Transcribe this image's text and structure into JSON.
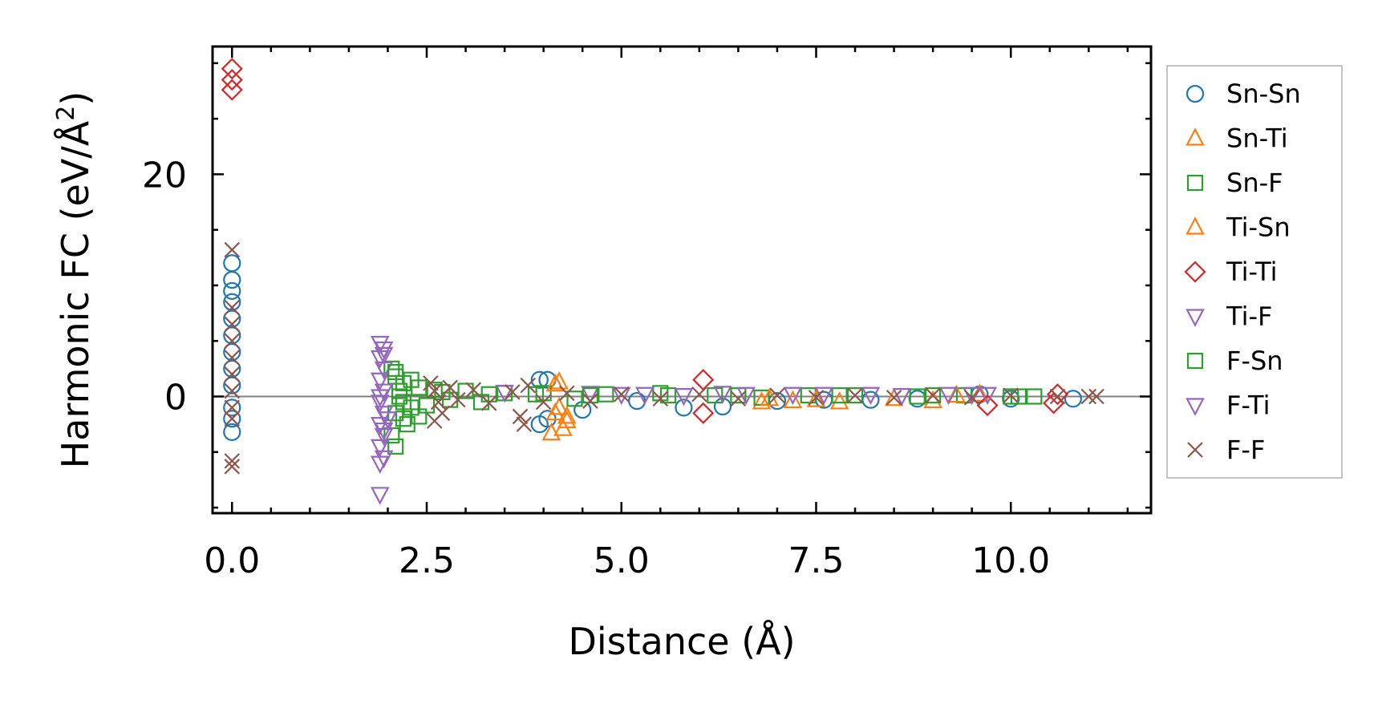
{
  "chart_data": {
    "type": "scatter",
    "xlabel": "Distance (Å)",
    "ylabel": "Harmonic FC (eV/Å²)",
    "ylabel_main": "Harmonic FC (eV/Å",
    "ylabel_sup": "2",
    "ylabel_close": ")",
    "xlim": [
      -0.25,
      11.8
    ],
    "ylim": [
      -10.5,
      31.5
    ],
    "xticks": [
      0,
      2.5,
      5,
      7.5,
      10
    ],
    "xtick_labels": [
      "0.0",
      "2.5",
      "5.0",
      "7.5",
      "10.0"
    ],
    "yticks": [
      0,
      20
    ],
    "ytick_labels": [
      "0",
      "20"
    ],
    "reference_line_y": 0,
    "grid": false,
    "legend_position": "outside-right",
    "series": [
      {
        "name": "Sn-Sn",
        "marker": "circle",
        "color": "#1f77b4",
        "points": [
          [
            0,
            12.0
          ],
          [
            0,
            10.5
          ],
          [
            0,
            9.5
          ],
          [
            0,
            8.5
          ],
          [
            0,
            7.0
          ],
          [
            0,
            5.5
          ],
          [
            0,
            4.0
          ],
          [
            0,
            2.5
          ],
          [
            0,
            1.0
          ],
          [
            0,
            -1.0
          ],
          [
            0,
            -2.0
          ],
          [
            0,
            -3.2
          ],
          [
            3.95,
            1.5
          ],
          [
            4.05,
            1.5
          ],
          [
            3.95,
            -2.5
          ],
          [
            4.05,
            -2.0
          ],
          [
            4.5,
            -1.2
          ],
          [
            5.2,
            -0.4
          ],
          [
            5.8,
            -1.0
          ],
          [
            6.3,
            -0.9
          ],
          [
            7.0,
            -0.4
          ],
          [
            7.6,
            -0.3
          ],
          [
            8.2,
            -0.3
          ],
          [
            8.8,
            -0.2
          ],
          [
            9.6,
            0.2
          ],
          [
            10.0,
            -0.2
          ],
          [
            10.8,
            -0.2
          ]
        ]
      },
      {
        "name": "Sn-Ti",
        "marker": "triangle-up",
        "color": "#ff7f0e",
        "points": [
          [
            4.1,
            -3.3
          ],
          [
            4.25,
            -2.9
          ],
          [
            4.2,
            1.3
          ],
          [
            4.3,
            -1.8
          ],
          [
            4.15,
            -1.5
          ],
          [
            6.8,
            -0.5
          ],
          [
            7.2,
            -0.4
          ],
          [
            7.8,
            -0.5
          ],
          [
            9.0,
            -0.4
          ],
          [
            9.6,
            0.2
          ]
        ]
      },
      {
        "name": "Sn-F",
        "marker": "square",
        "color": "#2ca02c",
        "points": [
          [
            2.05,
            2.5
          ],
          [
            2.1,
            1.8
          ],
          [
            2.2,
            1.2
          ],
          [
            2.15,
            0.5
          ],
          [
            2.2,
            -0.5
          ],
          [
            2.1,
            -1.5
          ],
          [
            2.25,
            -2.5
          ],
          [
            2.05,
            -3.5
          ],
          [
            2.1,
            -4.5
          ],
          [
            2.3,
            -1.0
          ],
          [
            2.4,
            0.8
          ],
          [
            2.5,
            -0.8
          ],
          [
            2.6,
            0.6
          ],
          [
            2.8,
            -0.3
          ],
          [
            3.0,
            0.5
          ],
          [
            3.2,
            -0.5
          ],
          [
            3.5,
            0.3
          ],
          [
            4.0,
            0.3
          ],
          [
            4.4,
            -0.2
          ],
          [
            4.8,
            0.2
          ],
          [
            5.5,
            0.3
          ],
          [
            6.2,
            0.1
          ],
          [
            6.8,
            -0.1
          ],
          [
            7.4,
            0.1
          ],
          [
            8.0,
            0.1
          ],
          [
            8.8,
            0.0
          ],
          [
            9.4,
            0.1
          ],
          [
            10.0,
            0.0
          ],
          [
            10.3,
            0.0
          ]
        ]
      },
      {
        "name": "Ti-Sn",
        "marker": "triangle-up",
        "color": "#ff7f0e",
        "points": [
          [
            4.15,
            1.1
          ],
          [
            4.3,
            -2.2
          ],
          [
            4.2,
            -1.0
          ],
          [
            6.9,
            -0.2
          ],
          [
            7.5,
            -0.3
          ],
          [
            8.5,
            -0.2
          ],
          [
            9.3,
            0.1
          ]
        ]
      },
      {
        "name": "Ti-Ti",
        "marker": "diamond",
        "color": "#d62728",
        "points": [
          [
            0,
            29.5
          ],
          [
            0,
            28.5
          ],
          [
            0,
            27.6
          ],
          [
            6.05,
            1.5
          ],
          [
            6.05,
            -1.5
          ],
          [
            9.7,
            -0.8
          ],
          [
            10.55,
            -0.6
          ],
          [
            10.6,
            0.2
          ]
        ]
      },
      {
        "name": "Ti-F",
        "marker": "triangle-down",
        "color": "#9467bd",
        "points": [
          [
            1.9,
            4.8
          ],
          [
            1.95,
            4.3
          ],
          [
            1.9,
            3.5
          ],
          [
            1.95,
            2.5
          ],
          [
            1.9,
            1.5
          ],
          [
            1.95,
            0.5
          ],
          [
            1.9,
            -0.5
          ],
          [
            1.95,
            -1.5
          ],
          [
            1.9,
            -2.5
          ],
          [
            1.95,
            -3.5
          ],
          [
            1.9,
            -4.5
          ],
          [
            1.95,
            -5.5
          ],
          [
            1.9,
            -8.8
          ],
          [
            3.5,
            0.4
          ],
          [
            4.6,
            0.3
          ],
          [
            5.3,
            0.2
          ],
          [
            6.3,
            0.3
          ],
          [
            7.2,
            0.2
          ],
          [
            8.2,
            0.2
          ],
          [
            9.2,
            0.2
          ],
          [
            9.7,
            0.2
          ]
        ]
      },
      {
        "name": "F-Sn",
        "marker": "square",
        "color": "#2ca02c",
        "points": [
          [
            2.1,
            2.2
          ],
          [
            2.15,
            0.0
          ],
          [
            2.2,
            -2.0
          ],
          [
            2.3,
            1.5
          ],
          [
            2.4,
            -1.8
          ],
          [
            2.7,
            0.4
          ],
          [
            3.3,
            0.2
          ],
          [
            3.9,
            0.2
          ],
          [
            4.6,
            0.1
          ],
          [
            5.6,
            0.1
          ],
          [
            6.5,
            0.1
          ],
          [
            7.8,
            0.1
          ],
          [
            9.0,
            0.1
          ],
          [
            10.1,
            0.0
          ]
        ]
      },
      {
        "name": "F-Ti",
        "marker": "triangle-down",
        "color": "#9467bd",
        "points": [
          [
            1.95,
            3.8
          ],
          [
            1.9,
            0.0
          ],
          [
            1.95,
            -3.0
          ],
          [
            1.9,
            -6.0
          ],
          [
            2.0,
            -2.0
          ],
          [
            5.0,
            0.2
          ],
          [
            5.8,
            0.1
          ],
          [
            6.6,
            0.2
          ],
          [
            7.6,
            0.2
          ],
          [
            8.6,
            0.1
          ],
          [
            9.5,
            0.2
          ]
        ]
      },
      {
        "name": "F-F",
        "marker": "x",
        "color": "#8c564b",
        "points": [
          [
            0,
            13.2
          ],
          [
            0,
            8.0
          ],
          [
            0,
            6.5
          ],
          [
            0,
            5.0
          ],
          [
            0,
            3.5
          ],
          [
            0,
            2.0
          ],
          [
            0,
            0.5
          ],
          [
            0,
            -1.0
          ],
          [
            0,
            -2.0
          ],
          [
            0,
            -5.8
          ],
          [
            0,
            -6.3
          ],
          [
            2.55,
            1.2
          ],
          [
            2.6,
            0.5
          ],
          [
            2.65,
            -0.5
          ],
          [
            2.7,
            -1.5
          ],
          [
            2.6,
            -2.2
          ],
          [
            2.8,
            0.8
          ],
          [
            2.9,
            -0.3
          ],
          [
            3.1,
            0.6
          ],
          [
            3.3,
            -0.6
          ],
          [
            3.6,
            0.4
          ],
          [
            3.75,
            -2.5
          ],
          [
            3.7,
            -1.8
          ],
          [
            3.8,
            1.0
          ],
          [
            4.0,
            -0.5
          ],
          [
            4.3,
            0.3
          ],
          [
            4.6,
            -0.4
          ],
          [
            5.0,
            0.2
          ],
          [
            5.5,
            -0.2
          ],
          [
            6.0,
            0.2
          ],
          [
            6.5,
            -0.2
          ],
          [
            7.0,
            0.1
          ],
          [
            7.5,
            -0.1
          ],
          [
            8.0,
            0.1
          ],
          [
            8.5,
            -0.1
          ],
          [
            9.0,
            0.1
          ],
          [
            9.5,
            -0.1
          ],
          [
            10.0,
            0.1
          ],
          [
            10.6,
            0.0
          ],
          [
            11.0,
            0.0
          ],
          [
            11.1,
            0.0
          ]
        ]
      }
    ]
  }
}
